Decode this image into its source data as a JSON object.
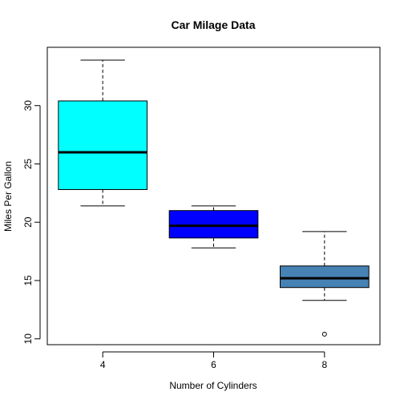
{
  "chart_data": {
    "type": "boxplot",
    "title": "Car Milage Data",
    "xlabel": "Number of Cylinders",
    "ylabel": "Miles Per Gallon",
    "categories": [
      "4",
      "6",
      "8"
    ],
    "ylim": [
      9.5,
      35
    ],
    "yticks": [
      10,
      15,
      20,
      25,
      30
    ],
    "grid": false,
    "legend": "none",
    "boxes": [
      {
        "category": "4",
        "whisker_low": 21.4,
        "q1": 22.8,
        "median": 26.0,
        "q3": 30.4,
        "whisker_high": 33.9,
        "outliers": [],
        "color": "#00ffff"
      },
      {
        "category": "6",
        "whisker_low": 17.8,
        "q1": 18.65,
        "median": 19.7,
        "q3": 21.0,
        "whisker_high": 21.4,
        "outliers": [],
        "color": "#0000ff"
      },
      {
        "category": "8",
        "whisker_low": 13.3,
        "q1": 14.4,
        "median": 15.2,
        "q3": 16.25,
        "whisker_high": 19.2,
        "outliers": [
          10.4
        ],
        "color": "#4682b4"
      }
    ]
  }
}
